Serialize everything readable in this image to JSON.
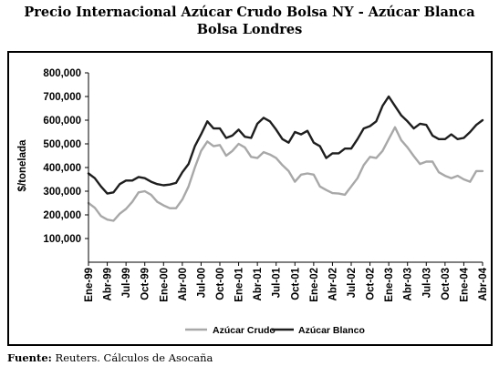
{
  "title_line1": "Precio Internacional Azúcar Crudo Bolsa NY - Azúcar Blanca",
  "title_line2": "Bolsa Londres",
  "source_label": "Fuente:",
  "source_text": " Reuters. Cálculos de Asocaña",
  "chart_data": {
    "type": "line",
    "title": "",
    "xlabel": "",
    "ylabel": "$/tonelada",
    "ylim": [
      0,
      800000
    ],
    "yticks": [
      100000,
      200000,
      300000,
      400000,
      500000,
      600000,
      700000,
      800000
    ],
    "ytick_labels": [
      "100,000",
      "200,000",
      "300,000",
      "400,000",
      "500,000",
      "600,000",
      "700,000",
      "800,000"
    ],
    "xtick_labels": [
      "Ene-99",
      "Abr-99",
      "Jul-99",
      "Oct-99",
      "Ene-00",
      "Abr-00",
      "Jul-00",
      "Oct-00",
      "Ene-01",
      "Abr-01",
      "Jul-01",
      "Oct-01",
      "Ene-02",
      "Abr-02",
      "Jul-02",
      "Oct-02",
      "Ene-03",
      "Abr-03",
      "Jul-03",
      "Oct-03",
      "Ene-04",
      "Abr-04"
    ],
    "xtick_every": 3,
    "grid": false,
    "legend_position": "bottom-center",
    "series": [
      {
        "name": "Azúcar Crudo",
        "color": "#a8a8a8",
        "values": [
          250000,
          230000,
          195000,
          180000,
          175000,
          205000,
          225000,
          255000,
          295000,
          300000,
          285000,
          255000,
          240000,
          228000,
          228000,
          265000,
          320000,
          400000,
          470000,
          510000,
          490000,
          495000,
          450000,
          470000,
          500000,
          485000,
          445000,
          440000,
          465000,
          455000,
          440000,
          410000,
          385000,
          340000,
          370000,
          375000,
          370000,
          320000,
          305000,
          292000,
          290000,
          285000,
          320000,
          355000,
          410000,
          445000,
          440000,
          470000,
          520000,
          570000,
          515000,
          485000,
          448000,
          415000,
          425000,
          425000,
          380000,
          365000,
          355000,
          365000,
          350000,
          340000,
          385000,
          385000
        ]
      },
      {
        "name": "Azúcar Blanco",
        "color": "#1e1e1e",
        "values": [
          375000,
          355000,
          320000,
          290000,
          295000,
          330000,
          345000,
          345000,
          360000,
          355000,
          340000,
          330000,
          325000,
          328000,
          335000,
          380000,
          415000,
          490000,
          540000,
          595000,
          565000,
          565000,
          525000,
          535000,
          560000,
          530000,
          525000,
          585000,
          610000,
          595000,
          560000,
          520000,
          505000,
          550000,
          540000,
          555000,
          505000,
          490000,
          440000,
          460000,
          460000,
          480000,
          480000,
          520000,
          565000,
          575000,
          595000,
          660000,
          700000,
          660000,
          620000,
          595000,
          565000,
          585000,
          580000,
          535000,
          520000,
          520000,
          540000,
          520000,
          525000,
          550000,
          580000,
          600000
        ]
      }
    ]
  }
}
